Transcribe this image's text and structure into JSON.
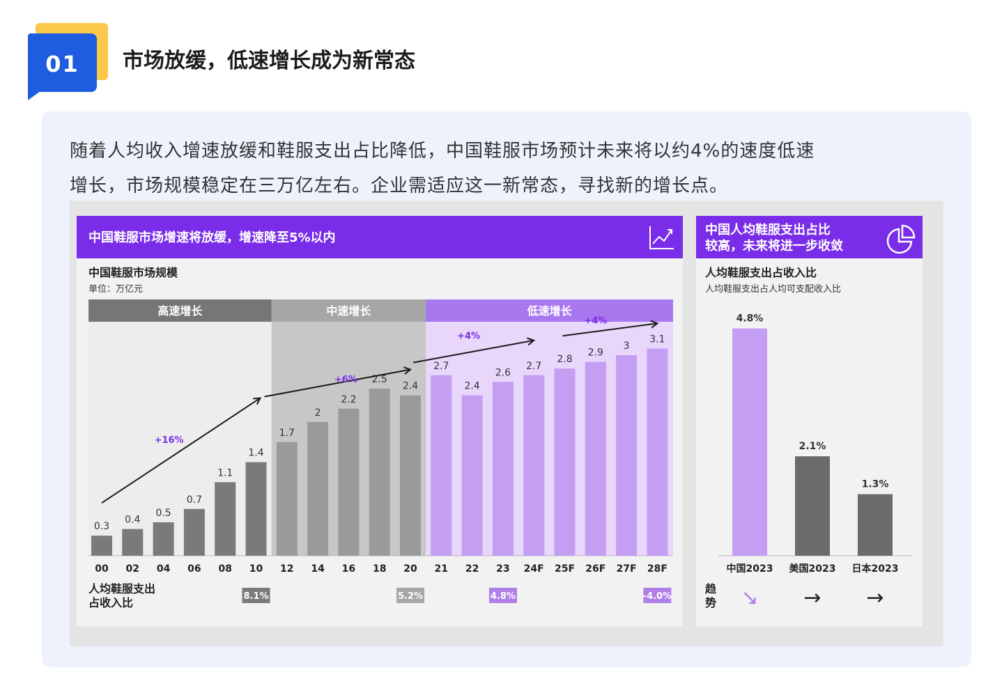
{
  "header": {
    "number": "01",
    "title": "市场放缓，低速增长成为新常态"
  },
  "intro": {
    "line1": "随着人均收入增速放缓和鞋服支出占比降低，中国鞋服市场预计未来将以约4%的速度低速",
    "line2": "增长，市场规模稳定在三万亿左右。企业需适应这一新常态，寻找新的增长点。"
  },
  "colors": {
    "purple_header": "#7a2de8",
    "gray_bar": "#7a7a7a",
    "light_purple_bar": "#c49ef2",
    "accent_blue": "#1f5de0",
    "accent_yellow": "#fcc84a",
    "arrow_purple": "#b07ee8"
  },
  "icons": {
    "left_panel": "line-chart-icon",
    "right_panel": "pie-chart-icon"
  },
  "chart_data": [
    {
      "type": "bar",
      "panel_title": "中国鞋服市场增速将放缓，增速降至5%以内",
      "title": "中国鞋服市场规模",
      "subtitle": "单位：万亿元",
      "categories": [
        "00",
        "02",
        "04",
        "06",
        "08",
        "10",
        "12",
        "14",
        "16",
        "18",
        "20",
        "21",
        "22",
        "23",
        "24F",
        "25F",
        "26F",
        "27F",
        "28F"
      ],
      "values": [
        0.3,
        0.4,
        0.5,
        0.7,
        1.1,
        1.4,
        1.7,
        2.0,
        2.2,
        2.5,
        2.4,
        2.7,
        2.4,
        2.6,
        2.7,
        2.8,
        2.9,
        3.0,
        3.1
      ],
      "ylim": [
        0,
        3.5
      ],
      "phases": [
        {
          "label": "高速增长",
          "first": 0,
          "last": 5,
          "growth": "+16%",
          "ratio": "8.1%"
        },
        {
          "label": "中速增长",
          "first": 6,
          "last": 10,
          "growth": "+6%",
          "ratio": "5.2%"
        },
        {
          "label": "低速增长",
          "first": 11,
          "last": 18,
          "growth": "+4%",
          "growth2": "+4%",
          "ratio": "4.8%",
          "ratio2": "-4.0%"
        }
      ],
      "ratio_row_label_1": "人均鞋服支出",
      "ratio_row_label_2": "占收入比"
    },
    {
      "type": "bar",
      "panel_title_1": "中国人均鞋服支出占比",
      "panel_title_2": "较高，未来将进一步收敛",
      "title": "人均鞋服支出占收入比",
      "subtitle": "人均鞋服支出占人均可支配收入比",
      "categories": [
        "中国2023",
        "美国2023",
        "日本2023"
      ],
      "values": [
        4.8,
        2.1,
        1.3
      ],
      "value_labels": [
        "4.8%",
        "2.1%",
        "1.3%"
      ],
      "ylim": [
        0,
        5
      ],
      "trend_label_1": "趋",
      "trend_label_2": "势",
      "trend_symbols": [
        "↘",
        "→",
        "→"
      ]
    }
  ]
}
